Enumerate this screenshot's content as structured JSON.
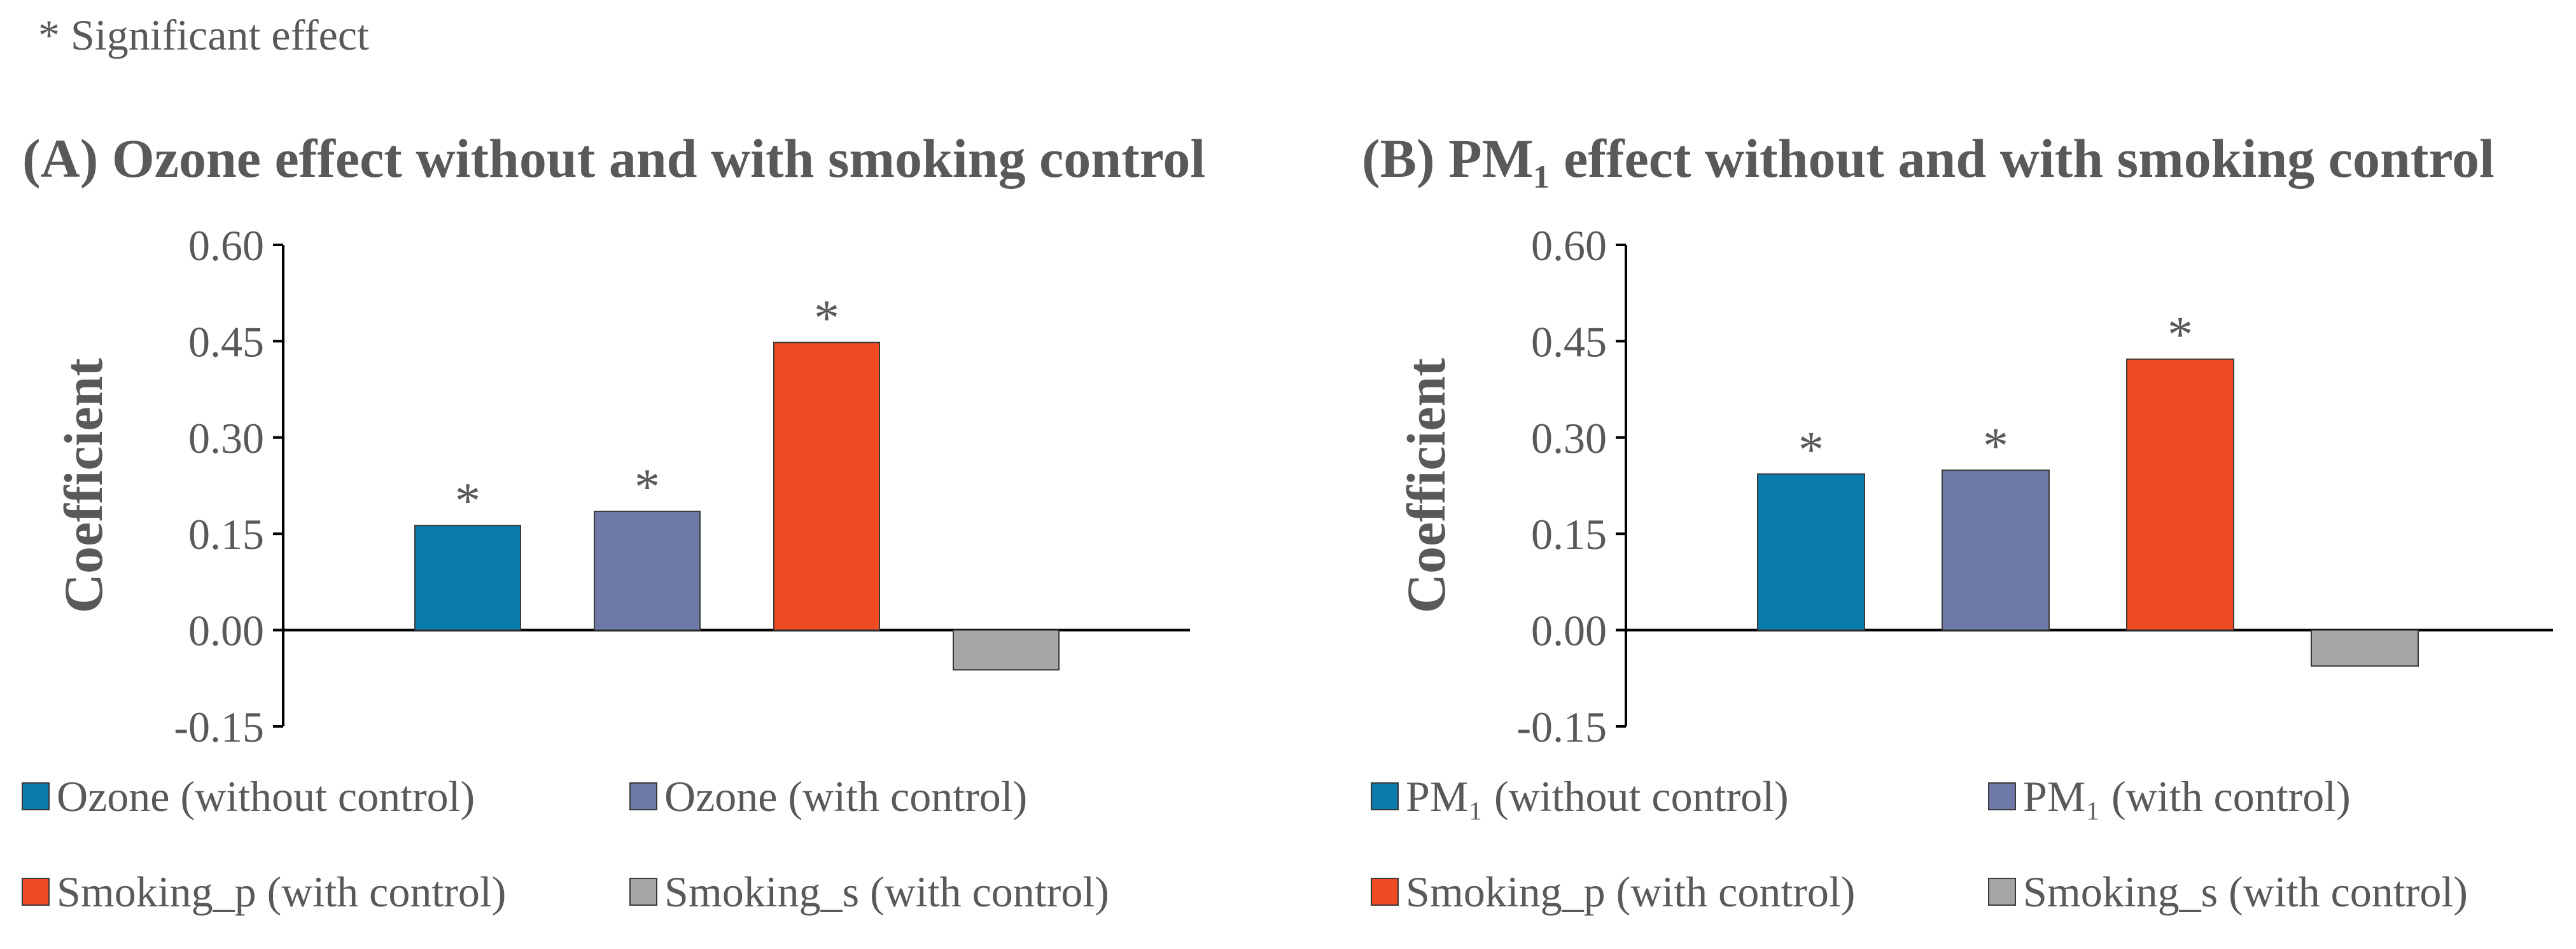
{
  "note": "* Significant effect",
  "colors": {
    "ozone_without": "#0a7bab",
    "ozone_with": "#6e79a8",
    "smoking_p": "#ef4b23",
    "smoking_s": "#a6a6a6",
    "text": "#595959",
    "axis": "#000000"
  },
  "chart_data": [
    {
      "type": "bar",
      "title": "(A)  Ozone effect without and with smoking control",
      "ylabel": "Coefficient",
      "xlabel": "",
      "ylim": [
        -0.15,
        0.6
      ],
      "yticks": [
        "0.60",
        "0.45",
        "0.30",
        "0.15",
        "0.00",
        "-0.15"
      ],
      "bars": [
        {
          "name": "Ozone (without control)",
          "value": 0.163,
          "significant": true,
          "color_key": "ozone_without"
        },
        {
          "name": "Ozone (with control)",
          "value": 0.185,
          "significant": true,
          "color_key": "ozone_with"
        },
        {
          "name": "Smoking_p (with control)",
          "value": 0.448,
          "significant": true,
          "color_key": "smoking_p"
        },
        {
          "name": "Smoking_s (with control)",
          "value": -0.062,
          "significant": false,
          "color_key": "smoking_s"
        }
      ],
      "star_label": "*",
      "legend": [
        {
          "label": "Ozone (without control)",
          "color_key": "ozone_without"
        },
        {
          "label": "Ozone (with control)",
          "color_key": "ozone_with"
        },
        {
          "label": "Smoking_p (with control)",
          "color_key": "smoking_p"
        },
        {
          "label": "Smoking_s (with control)",
          "color_key": "smoking_s"
        }
      ]
    },
    {
      "type": "bar",
      "title": "(B) PM₁ effect without and with smoking control",
      "ylabel": "Coefficient",
      "xlabel": "",
      "ylim": [
        -0.15,
        0.6
      ],
      "yticks": [
        "0.60",
        "0.45",
        "0.30",
        "0.15",
        "0.00",
        "-0.15"
      ],
      "bars": [
        {
          "name": "PM₁ (without control)",
          "value": 0.243,
          "significant": true,
          "color_key": "ozone_without"
        },
        {
          "name": "PM₁ (with control)",
          "value": 0.249,
          "significant": true,
          "color_key": "ozone_with"
        },
        {
          "name": "Smoking_p (with control)",
          "value": 0.422,
          "significant": true,
          "color_key": "smoking_p"
        },
        {
          "name": "Smoking_s (with control)",
          "value": -0.056,
          "significant": false,
          "color_key": "smoking_s"
        }
      ],
      "star_label": "*",
      "legend": [
        {
          "label": "PM₁ (without control)",
          "color_key": "ozone_without"
        },
        {
          "label": "PM₁  (with control)",
          "color_key": "ozone_with"
        },
        {
          "label": "Smoking_p  (with control)",
          "color_key": "smoking_p"
        },
        {
          "label": "Smoking_s (with control)",
          "color_key": "smoking_s"
        }
      ]
    }
  ]
}
